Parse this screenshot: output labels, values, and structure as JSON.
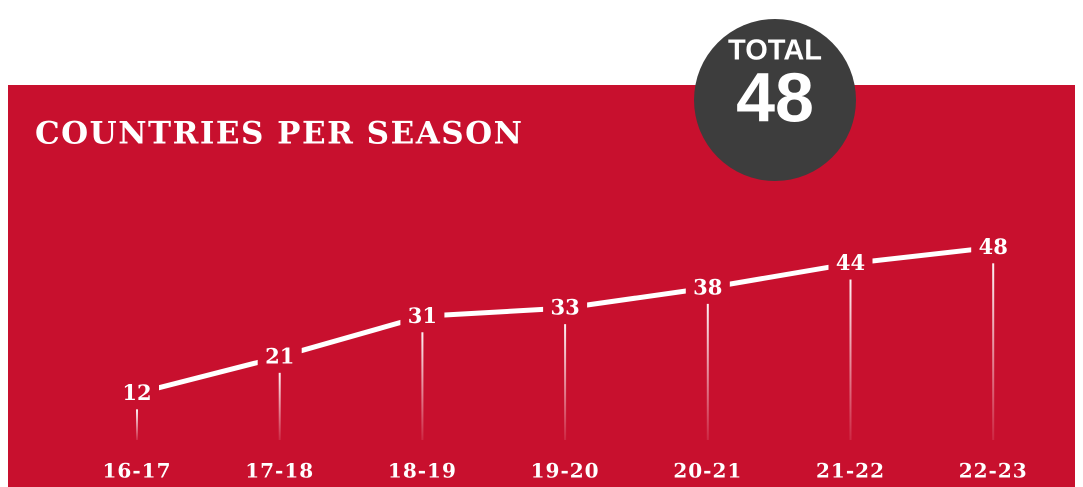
{
  "chart_data": {
    "type": "line",
    "title": "COUNTRIES PER SEASON",
    "total_label": "TOTAL",
    "total": 48,
    "categories": [
      "16-17",
      "17-18",
      "18-19",
      "19-20",
      "20-21",
      "21-22",
      "22-23"
    ],
    "values": [
      12,
      21,
      31,
      33,
      38,
      44,
      48
    ],
    "color": "#ffffff",
    "background": "#c8102e",
    "badge_color": "#3d3d3d"
  }
}
